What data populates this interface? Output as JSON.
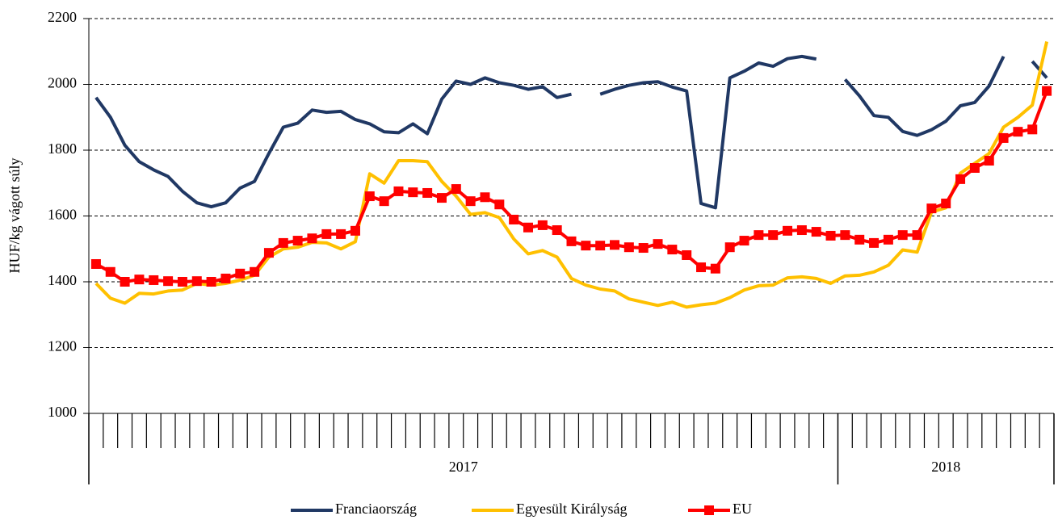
{
  "chart_data": {
    "type": "line",
    "ylabel": "HUF/kg vágott súly",
    "categories": [
      null,
      null,
      null,
      null,
      null,
      null,
      null,
      null,
      null,
      null,
      null,
      null,
      null,
      null,
      null,
      null,
      null,
      null,
      null,
      null,
      null,
      null,
      null,
      null,
      null,
      null,
      null,
      null,
      null,
      null,
      null,
      null,
      null,
      null,
      null,
      null,
      null,
      null,
      null,
      null,
      null,
      null,
      null,
      null,
      null,
      null,
      null,
      null,
      null,
      null,
      null,
      null,
      null,
      null,
      null,
      null,
      null,
      null,
      null,
      null,
      null,
      null,
      null,
      null,
      null,
      null,
      null
    ],
    "groups": [
      {
        "label": "2017",
        "count": 52
      },
      {
        "label": "2018",
        "count": 15
      }
    ],
    "ylim": [
      1000,
      2200
    ],
    "yticks": [
      1000,
      1200,
      1400,
      1600,
      1800,
      2000,
      2200
    ],
    "grid": true,
    "legend": "bottom",
    "series": [
      {
        "name": "Franciaország",
        "color": "#203864",
        "values": [
          1960,
          1900,
          1815,
          1765,
          1740,
          1720,
          1675,
          1640,
          1628,
          1640,
          1685,
          1705,
          1790,
          1870,
          1882,
          1922,
          1915,
          1918,
          1893,
          1880,
          1856,
          1853,
          1880,
          1850,
          1955,
          2010,
          2000,
          2020,
          2005,
          1997,
          1985,
          1993,
          1960,
          1970,
          null,
          1970,
          1985,
          1997,
          2005,
          2008,
          1992,
          1980,
          1638,
          1625,
          2020,
          2040,
          2065,
          2055,
          2078,
          2085,
          2077,
          null,
          2015,
          1965,
          1905,
          1900,
          1857,
          1845,
          1862,
          1888,
          1935,
          1945,
          1995,
          2085,
          null,
          2070,
          2020
        ]
      },
      {
        "name": "Egyesült Királyság",
        "color": "#ffc000",
        "values": [
          1395,
          1350,
          1335,
          1365,
          1363,
          1372,
          1375,
          1395,
          1390,
          1395,
          1405,
          1420,
          1475,
          1500,
          1505,
          1520,
          1518,
          1500,
          1522,
          1728,
          1700,
          1768,
          1768,
          1765,
          1705,
          1660,
          1605,
          1610,
          1595,
          1530,
          1485,
          1495,
          1475,
          1410,
          1390,
          1378,
          1372,
          1348,
          1338,
          1328,
          1338,
          1323,
          1330,
          1335,
          1352,
          1375,
          1388,
          1390,
          1412,
          1415,
          1410,
          1395,
          1418,
          1420,
          1430,
          1450,
          1497,
          1490,
          1612,
          1625,
          1730,
          1760,
          1790,
          1870,
          1900,
          1937,
          2130
        ]
      },
      {
        "name": "EU",
        "color": "#ff0000",
        "marker": "square",
        "values": [
          1454,
          1430,
          1400,
          1407,
          1405,
          1402,
          1400,
          1402,
          1400,
          1410,
          1425,
          1430,
          1488,
          1518,
          1525,
          1532,
          1545,
          1545,
          1555,
          1660,
          1645,
          1675,
          1672,
          1670,
          1655,
          1682,
          1645,
          1657,
          1635,
          1589,
          1565,
          1572,
          1557,
          1523,
          1510,
          1510,
          1512,
          1505,
          1503,
          1515,
          1498,
          1481,
          1444,
          1440,
          1505,
          1525,
          1542,
          1542,
          1555,
          1557,
          1552,
          1540,
          1542,
          1528,
          1518,
          1528,
          1542,
          1542,
          1623,
          1638,
          1712,
          1746,
          1768,
          1837,
          1856,
          1863,
          1980
        ]
      }
    ]
  }
}
